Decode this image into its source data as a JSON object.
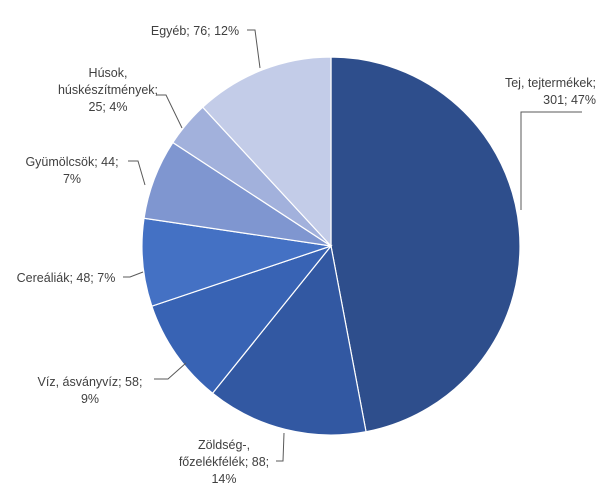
{
  "chart_data": {
    "type": "pie",
    "title": "",
    "slices": [
      {
        "label": "Tej, tejtermékek",
        "value": 301,
        "percent": 47,
        "color": "#2E4E8C",
        "label_lines": [
          "Tej, tejtermékek;",
          "301; 47%"
        ]
      },
      {
        "label": "Zöldség-, főzelékfélék",
        "value": 88,
        "percent": 14,
        "color": "#3258A2",
        "label_lines": [
          "Zöldség-,",
          "főzelékfélék; 88;",
          "14%"
        ]
      },
      {
        "label": "Víz, ásványvíz",
        "value": 58,
        "percent": 9,
        "color": "#3863B4",
        "label_lines": [
          "Víz, ásványvíz; 58;",
          "9%"
        ]
      },
      {
        "label": "Cereáliák",
        "value": 48,
        "percent": 7,
        "color": "#4471C4",
        "label_lines": [
          "Cereáliák; 48; 7%"
        ]
      },
      {
        "label": "Gyümölcsök",
        "value": 44,
        "percent": 7,
        "color": "#7F96D0",
        "label_lines": [
          "Gyümölcsök; 44;",
          "7%"
        ]
      },
      {
        "label": "Húsok, húskészítmények",
        "value": 25,
        "percent": 4,
        "color": "#A2B1DC",
        "label_lines": [
          "Húsok,",
          "húskészítmények;",
          "25; 4%"
        ]
      },
      {
        "label": "Egyéb",
        "value": 76,
        "percent": 12,
        "color": "#C3CCE8",
        "label_lines": [
          "Egyéb; 76; 12%"
        ]
      }
    ],
    "legend": "none",
    "data_labels": "outside-with-leader-lines"
  }
}
